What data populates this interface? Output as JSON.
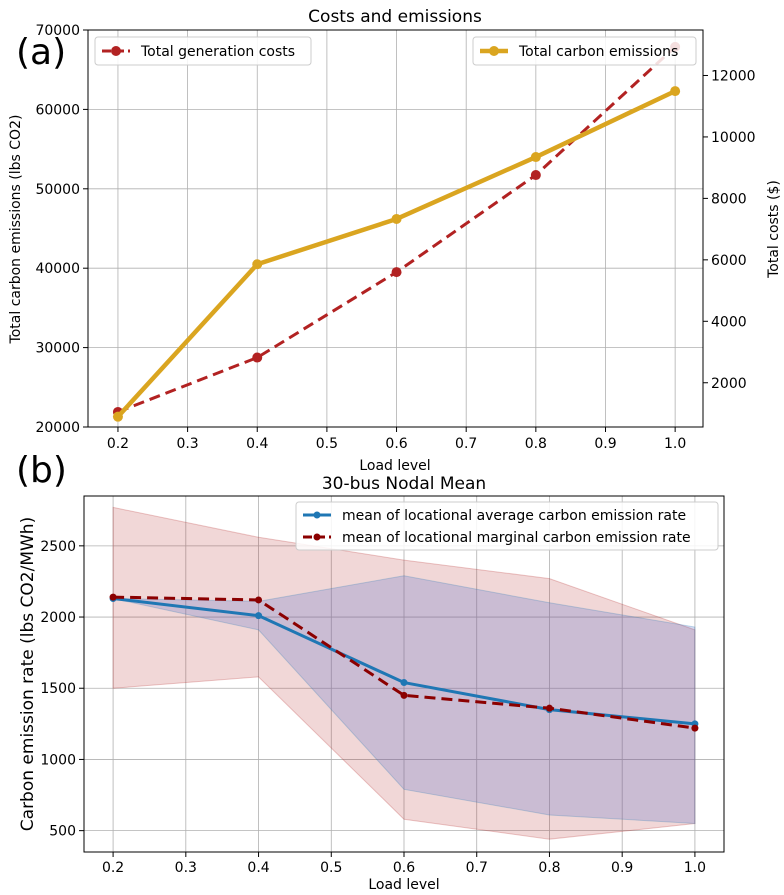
{
  "chart_data": [
    {
      "panel_label": "(a)",
      "type": "line",
      "title": "Costs and emissions",
      "xlabel": "Load level",
      "ylabel_left": "Total carbon emissions (lbs CO2)",
      "ylabel_right": "Total costs ($)",
      "x": [
        0.2,
        0.4,
        0.6,
        0.8,
        1.0
      ],
      "xlim": [
        0.157,
        1.04
      ],
      "ylim_left": [
        20000,
        70000
      ],
      "ylim_right": [
        560,
        13480
      ],
      "xticks": [
        "0.2",
        "0.3",
        "0.4",
        "0.5",
        "0.6",
        "0.7",
        "0.8",
        "0.9",
        "1.0"
      ],
      "yticks_left": [
        "20000",
        "30000",
        "40000",
        "50000",
        "60000",
        "70000"
      ],
      "yticks_right": [
        "2000",
        "4000",
        "6000",
        "8000",
        "10000",
        "12000"
      ],
      "grid": true,
      "series": [
        {
          "name": "Total generation costs",
          "axis": "right",
          "color": "#b22222",
          "style": "dashed",
          "values": [
            1050,
            2820,
            5600,
            8760,
            12930
          ]
        },
        {
          "name": "Total carbon emissions",
          "axis": "left",
          "color": "#daa520",
          "style": "solid",
          "values": [
            21300,
            40500,
            46200,
            54000,
            62300
          ]
        }
      ],
      "legend": [
        "top-left",
        "top-right"
      ]
    },
    {
      "panel_label": "(b)",
      "type": "line",
      "title": "30-bus Nodal Mean",
      "xlabel": "Load level",
      "ylabel": "Carbon emission rate (lbs CO2/MWh)",
      "x": [
        0.2,
        0.4,
        0.6,
        0.8,
        1.0
      ],
      "xlim": [
        0.16,
        1.04
      ],
      "ylim": [
        350,
        2850
      ],
      "xticks": [
        "0.2",
        "0.3",
        "0.4",
        "0.5",
        "0.6",
        "0.7",
        "0.8",
        "0.9",
        "1.0"
      ],
      "yticks": [
        "500",
        "1000",
        "1500",
        "2000",
        "2500"
      ],
      "grid": true,
      "series": [
        {
          "name": "mean of locational average carbon emission rate",
          "color": "#1f77b4",
          "style": "solid",
          "values": [
            2130,
            2010,
            1540,
            1350,
            1250
          ],
          "band_lower": [
            2130,
            1910,
            790,
            610,
            550
          ],
          "band_upper": [
            2130,
            2110,
            2290,
            2100,
            1930
          ]
        },
        {
          "name": "mean of locational marginal carbon emission rate",
          "color": "#8b0000",
          "style": "dashed",
          "values": [
            2140,
            2120,
            1450,
            1360,
            1220
          ],
          "band_lower": [
            1500,
            1580,
            580,
            440,
            550
          ],
          "band_upper": [
            2770,
            2560,
            2400,
            2270,
            1910
          ]
        }
      ],
      "legend": "top-right"
    }
  ]
}
